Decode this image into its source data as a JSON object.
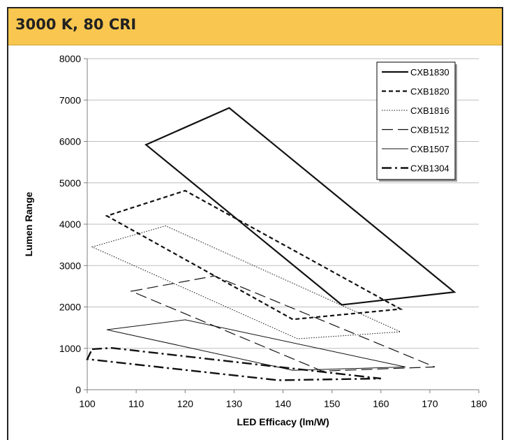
{
  "header": {
    "title": "3000 K, 80 CRI"
  },
  "chart_data": {
    "type": "line",
    "title": "3000 K, 80 CRI",
    "xlabel": "LED Efficacy (lm/W)",
    "ylabel": "Lumen Range",
    "xlim": [
      100,
      180
    ],
    "ylim": [
      0,
      8000
    ],
    "x_ticks": [
      100,
      110,
      120,
      130,
      140,
      150,
      160,
      170,
      180
    ],
    "y_ticks": [
      0,
      1000,
      2000,
      3000,
      4000,
      5000,
      6000,
      7000,
      8000
    ],
    "grid": "horizontal",
    "legend_position": "top-right",
    "series": [
      {
        "name": "CXB1830",
        "style": "solid-thick",
        "closed": true,
        "points": [
          [
            112,
            5920
          ],
          [
            129,
            6810
          ],
          [
            175,
            2360
          ],
          [
            152,
            2050
          ]
        ]
      },
      {
        "name": "CXB1820",
        "style": "dashed-short",
        "closed": false,
        "points": [
          [
            142,
            1700
          ],
          [
            104,
            4200
          ],
          [
            120,
            4810
          ],
          [
            164,
            1950
          ],
          [
            142,
            1700
          ]
        ]
      },
      {
        "name": "CXB1816",
        "style": "dotted",
        "closed": true,
        "points": [
          [
            101,
            3450
          ],
          [
            116,
            3960
          ],
          [
            164,
            1400
          ],
          [
            143,
            1230
          ]
        ]
      },
      {
        "name": "CXB1512",
        "style": "dashed-long",
        "closed": true,
        "points": [
          [
            109,
            2380
          ],
          [
            126,
            2750
          ],
          [
            171,
            550
          ],
          [
            148,
            450
          ]
        ]
      },
      {
        "name": "CXB1507",
        "style": "solid-thin",
        "closed": true,
        "points": [
          [
            104,
            1450
          ],
          [
            120,
            1690
          ],
          [
            165,
            550
          ],
          [
            142,
            470
          ]
        ]
      },
      {
        "name": "CXB1304",
        "style": "dash-dot",
        "closed": true,
        "points": [
          [
            101,
            980
          ],
          [
            105,
            1010
          ],
          [
            160,
            270
          ],
          [
            139,
            230
          ],
          [
            100,
            740
          ]
        ]
      }
    ]
  }
}
